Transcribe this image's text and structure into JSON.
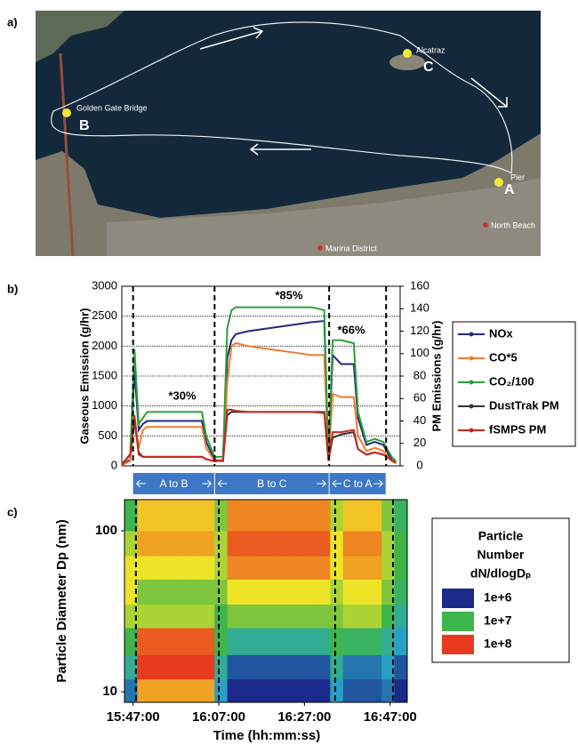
{
  "panel_labels": [
    "a)",
    "b)",
    "c)"
  ],
  "map": {
    "places": [
      "Alcatraz",
      "Golden Gate Bridge",
      "Pier",
      "North Beach",
      "Marina District"
    ],
    "points": [
      "C",
      "B",
      "A"
    ]
  },
  "chart_data": [
    {
      "type": "line",
      "ylabel": "Gaseous Emission (g/hr)",
      "y2label": "PM Emissions (g/hr)",
      "xlim": [
        "15:45:00",
        "16:51:00"
      ],
      "ylim": [
        0,
        3000
      ],
      "yticks": [
        0,
        500,
        1000,
        1500,
        2000,
        2500,
        3000
      ],
      "y2lim": [
        0,
        160
      ],
      "y2ticks": [
        0,
        20,
        40,
        60,
        80,
        100,
        120,
        140,
        160
      ],
      "grid": true,
      "x": [
        "15:45:00",
        "15:47:00",
        "15:48:00",
        "15:49:00",
        "15:50:00",
        "15:51:00",
        "15:55:00",
        "16:00:00",
        "16:04:00",
        "16:05:00",
        "16:07:00",
        "16:09:00",
        "16:10:00",
        "16:11:00",
        "16:12:00",
        "16:15:00",
        "16:20:00",
        "16:25:00",
        "16:30:00",
        "16:33:00",
        "16:34:00",
        "16:35:00",
        "16:37:00",
        "16:40:00",
        "16:41:00",
        "16:43:00",
        "16:45:00",
        "16:47:00",
        "16:49:00",
        "16:50:00"
      ],
      "series": [
        {
          "name": "NOx",
          "color": "#1f2a78",
          "values": [
            20,
            100,
            1600,
            600,
            700,
            750,
            750,
            750,
            750,
            400,
            100,
            80,
            1800,
            2100,
            2200,
            2250,
            2300,
            2350,
            2400,
            2420,
            100,
            1850,
            1700,
            1700,
            800,
            350,
            400,
            350,
            100,
            50
          ]
        },
        {
          "name": "CO*5",
          "color": "#f07a30",
          "values": [
            10,
            80,
            800,
            300,
            600,
            650,
            650,
            650,
            650,
            300,
            80,
            100,
            1400,
            2000,
            2050,
            2000,
            1950,
            1900,
            1850,
            1850,
            80,
            1200,
            1150,
            1150,
            500,
            250,
            300,
            250,
            80,
            40
          ]
        },
        {
          "name": "CO₂/100",
          "color": "#2e9e3a",
          "values": [
            30,
            200,
            1950,
            700,
            800,
            900,
            900,
            900,
            900,
            500,
            150,
            150,
            2300,
            2600,
            2650,
            2650,
            2650,
            2650,
            2650,
            2600,
            150,
            2100,
            2100,
            2050,
            900,
            400,
            450,
            400,
            150,
            80
          ]
        },
        {
          "name": "DustTrak PM",
          "color": "#333333",
          "axis": "y2",
          "values": [
            1,
            10,
            40,
            12,
            8,
            8,
            8,
            8,
            8,
            6,
            4,
            5,
            45,
            48,
            48,
            48,
            48,
            48,
            48,
            48,
            5,
            25,
            28,
            30,
            15,
            10,
            12,
            10,
            5,
            3
          ]
        },
        {
          "name": "fSMPS PM",
          "color": "#c8281e",
          "axis": "y2",
          "values": [
            1,
            10,
            45,
            10,
            8,
            8,
            8,
            8,
            8,
            6,
            4,
            5,
            50,
            50,
            49,
            48,
            48,
            48,
            48,
            47,
            5,
            30,
            30,
            32,
            15,
            10,
            12,
            10,
            5,
            3
          ]
        }
      ],
      "annotations": [
        "*30%",
        "*85%",
        "*66%"
      ],
      "markers": [
        "15:47:40",
        "16:07:00",
        "16:34:10",
        "16:47:40"
      ],
      "segment_labels": [
        "A to B",
        "B to C",
        "C to A"
      ]
    },
    {
      "type": "heatmap",
      "xlabel": "Time (hh:mm:ss)",
      "ylabel": "Particle Diameter Dp (nm)",
      "xlim": [
        "15:45:00",
        "16:51:00"
      ],
      "xticks": [
        "15:47:00",
        "16:07:00",
        "16:27:00",
        "16:47:00"
      ],
      "ylim": [
        8.6,
        156
      ],
      "yticks": [
        10,
        100
      ],
      "yscale": "log",
      "legend_title": [
        "Particle",
        "Number",
        "dN/dlogDₚ"
      ],
      "legend_ticks": [
        {
          "value": 1000000,
          "label": "1e+6"
        },
        {
          "value": 10000000,
          "label": "1e+7"
        },
        {
          "value": 100000000,
          "label": "1e+8"
        }
      ],
      "colorscale": [
        "#1c2a8a",
        "#2aa6c6",
        "#3db54a",
        "#f5e626",
        "#e83a1f"
      ],
      "x_edges": [
        "15:45:00",
        "15:48:00",
        "15:51:00",
        "15:54:00",
        "15:57:00",
        "16:00:00",
        "16:03:00",
        "16:06:00",
        "16:09:00",
        "16:12:00",
        "16:15:00",
        "16:18:00",
        "16:21:00",
        "16:24:00",
        "16:27:00",
        "16:30:00",
        "16:33:00",
        "16:36:00",
        "16:39:00",
        "16:42:00",
        "16:45:00",
        "16:48:00",
        "16:51:00"
      ],
      "y_edges": [
        8.6,
        12,
        17,
        25,
        35,
        50,
        70,
        100,
        156
      ],
      "values": [
        [
          2000000.0,
          5000000.0,
          10000000.0,
          20000000.0,
          30000000.0,
          30000000.0,
          20000000.0,
          10000000.0
        ],
        [
          50000000.0,
          100000000.0,
          80000000.0,
          20000000.0,
          15000000.0,
          30000000.0,
          50000000.0,
          40000000.0
        ],
        [
          50000000.0,
          100000000.0,
          80000000.0,
          20000000.0,
          15000000.0,
          30000000.0,
          50000000.0,
          40000000.0
        ],
        [
          50000000.0,
          100000000.0,
          80000000.0,
          20000000.0,
          15000000.0,
          30000000.0,
          50000000.0,
          40000000.0
        ],
        [
          50000000.0,
          100000000.0,
          80000000.0,
          20000000.0,
          15000000.0,
          30000000.0,
          50000000.0,
          40000000.0
        ],
        [
          50000000.0,
          100000000.0,
          80000000.0,
          20000000.0,
          15000000.0,
          30000000.0,
          50000000.0,
          40000000.0
        ],
        [
          50000000.0,
          100000000.0,
          80000000.0,
          20000000.0,
          15000000.0,
          30000000.0,
          50000000.0,
          40000000.0
        ],
        [
          3000000.0,
          5000000.0,
          10000000.0,
          10000000.0,
          15000000.0,
          20000000.0,
          20000000.0,
          15000000.0
        ],
        [
          1000000.0,
          1500000.0,
          5000000.0,
          15000000.0,
          30000000.0,
          60000000.0,
          80000000.0,
          60000000.0
        ],
        [
          1000000.0,
          1500000.0,
          5000000.0,
          15000000.0,
          30000000.0,
          60000000.0,
          80000000.0,
          60000000.0
        ],
        [
          1000000.0,
          1500000.0,
          5000000.0,
          15000000.0,
          30000000.0,
          60000000.0,
          80000000.0,
          60000000.0
        ],
        [
          1000000.0,
          1500000.0,
          5000000.0,
          15000000.0,
          30000000.0,
          60000000.0,
          80000000.0,
          60000000.0
        ],
        [
          1000000.0,
          1500000.0,
          5000000.0,
          15000000.0,
          30000000.0,
          60000000.0,
          80000000.0,
          60000000.0
        ],
        [
          1000000.0,
          1500000.0,
          5000000.0,
          15000000.0,
          30000000.0,
          60000000.0,
          80000000.0,
          60000000.0
        ],
        [
          1000000.0,
          1500000.0,
          5000000.0,
          15000000.0,
          30000000.0,
          60000000.0,
          80000000.0,
          60000000.0
        ],
        [
          1000000.0,
          1500000.0,
          5000000.0,
          15000000.0,
          30000000.0,
          60000000.0,
          80000000.0,
          60000000.0
        ],
        [
          3000000.0,
          5000000.0,
          10000000.0,
          15000000.0,
          20000000.0,
          30000000.0,
          30000000.0,
          20000000.0
        ],
        [
          1500000.0,
          2000000.0,
          8000000.0,
          20000000.0,
          30000000.0,
          50000000.0,
          60000000.0,
          40000000.0
        ],
        [
          1500000.0,
          2000000.0,
          8000000.0,
          20000000.0,
          30000000.0,
          50000000.0,
          60000000.0,
          40000000.0
        ],
        [
          1500000.0,
          2000000.0,
          8000000.0,
          20000000.0,
          30000000.0,
          50000000.0,
          60000000.0,
          40000000.0
        ],
        [
          2000000.0,
          3000000.0,
          5000000.0,
          10000000.0,
          15000000.0,
          20000000.0,
          20000000.0,
          15000000.0
        ],
        [
          1000000.0,
          1500000.0,
          3000000.0,
          5000000.0,
          8000000.0,
          10000000.0,
          10000000.0,
          8000000.0
        ]
      ]
    }
  ]
}
